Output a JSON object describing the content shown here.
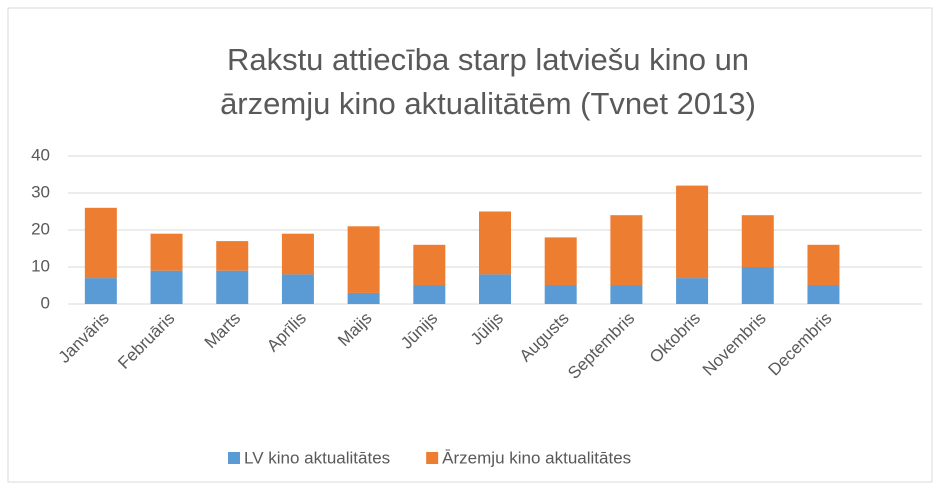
{
  "chart_data": {
    "type": "bar",
    "stacked": true,
    "title": [
      "Rakstu attiecība starp latviešu kino un",
      "ārzemju kino aktualitātēm (Tvnet 2013)"
    ],
    "categories": [
      "Janvāris",
      "Februāris",
      "Marts",
      "Aprīlis",
      "Maijs",
      "Jūnijs",
      "Jūlijs",
      "Augusts",
      "Septembris",
      "Oktobris",
      "Novembris",
      "Decembris",
      null
    ],
    "series": [
      {
        "name": "LV kino aktualitātes",
        "color": "#5b9bd5",
        "values": [
          7,
          9,
          9,
          8,
          3,
          5,
          8,
          5,
          5,
          7,
          10,
          5,
          null
        ]
      },
      {
        "name": "Ārzemju kino aktualitātes",
        "color": "#ed7d31",
        "values": [
          19,
          10,
          8,
          11,
          18,
          11,
          17,
          13,
          19,
          25,
          14,
          11,
          null
        ]
      }
    ],
    "ylim": [
      0,
      40
    ],
    "yticks": [
      0,
      10,
      20,
      30,
      40
    ],
    "grid": true,
    "legend": "bottom"
  }
}
